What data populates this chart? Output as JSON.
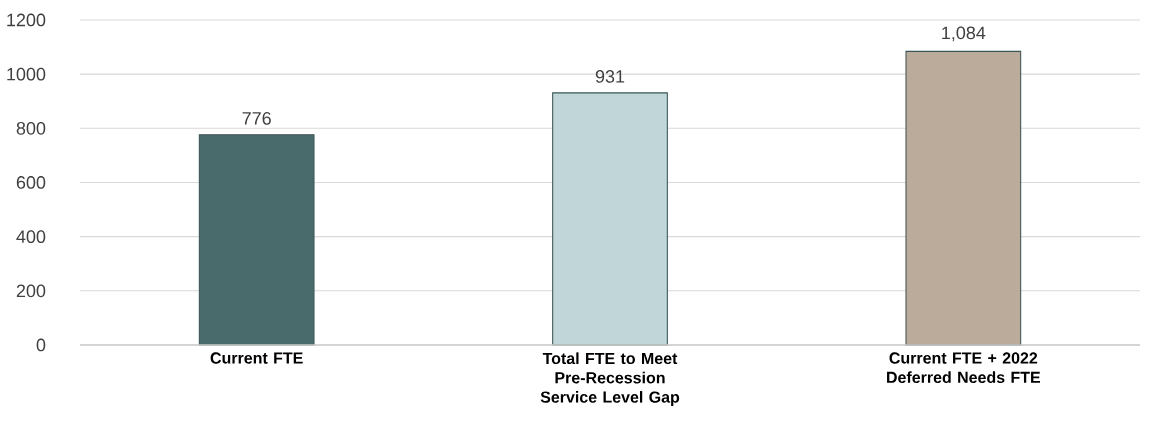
{
  "chart_data": {
    "type": "bar",
    "categories": [
      "Current FTE",
      "Total FTE to Meet Pre-Recession Service Level Gap",
      "Current FTE + 2022 Deferred Needs FTE"
    ],
    "values": [
      776,
      931,
      1084
    ],
    "colors": [
      "#4a6b6c",
      "#c0d6d8",
      "#bbab9a"
    ],
    "value_labels": [
      "776",
      "931",
      "1,084"
    ],
    "ylim": [
      0,
      1200
    ],
    "yticks": [
      0,
      200,
      400,
      600,
      800,
      1000,
      1200
    ],
    "grid": "y"
  }
}
